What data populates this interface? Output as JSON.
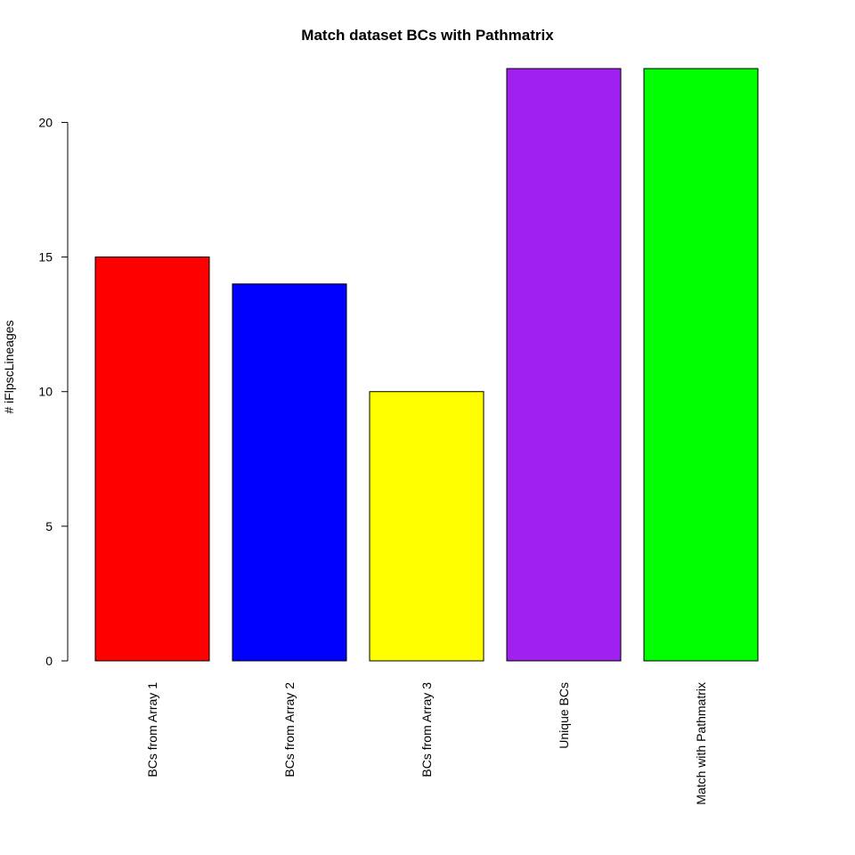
{
  "chart_data": {
    "type": "bar",
    "title": "Match dataset BCs with Pathmatrix",
    "xlabel": "",
    "ylabel": "# iFlpscLineages",
    "categories": [
      "BCs from Array 1",
      "BCs from Array 2",
      "BCs from Array 3",
      "Unique BCs",
      "Match with Pathmatrix"
    ],
    "values": [
      15,
      14,
      10,
      22,
      22
    ],
    "colors": [
      "#FF0000",
      "#0000FF",
      "#FFFF00",
      "#A020F0",
      "#00FF00"
    ],
    "ylim": [
      0,
      22
    ],
    "yticks": [
      0,
      5,
      10,
      15,
      20
    ],
    "grid": false,
    "legend": "none"
  }
}
